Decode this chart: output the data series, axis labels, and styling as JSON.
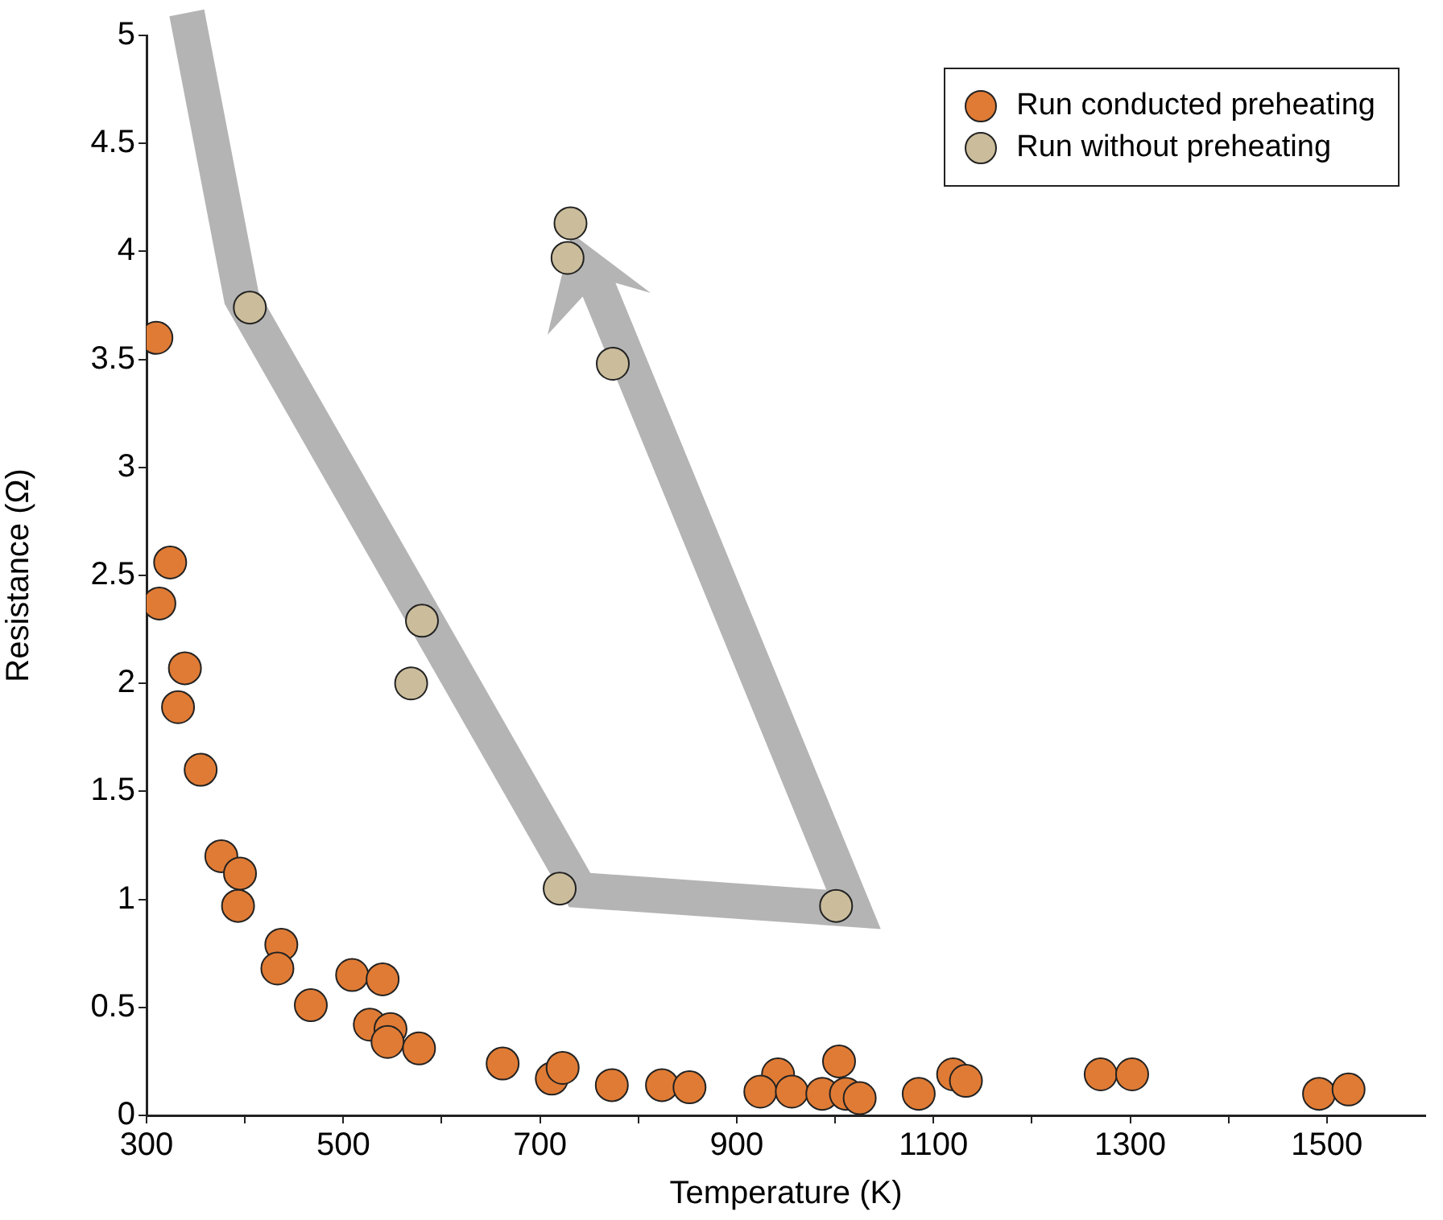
{
  "chart_data": {
    "type": "scatter",
    "xlabel": "Temperature (K)",
    "ylabel": "Resistance (Ω)",
    "xlim": [
      300,
      1600
    ],
    "xticks": [
      300,
      {
        "value": 400,
        "label": null
      },
      500,
      {
        "value": 600,
        "label": null
      },
      700,
      {
        "value": 800,
        "label": null
      },
      900,
      {
        "value": 1000,
        "label": null
      },
      1100,
      {
        "value": 1200,
        "label": null
      },
      1300,
      {
        "value": 1400,
        "label": null
      },
      1500
    ],
    "ylim": [
      0,
      5
    ],
    "yticks": [
      0,
      0.5,
      1,
      1.5,
      2,
      2.5,
      3,
      3.5,
      4,
      4.5,
      5
    ],
    "grid": false,
    "legend": "top right",
    "marker": "circle",
    "series": [
      {
        "name": "Run conducted preheating",
        "color": "#e07b35",
        "x": [
          310,
          313,
          324,
          339,
          332,
          355,
          376,
          395,
          393,
          437,
          433,
          467,
          509,
          540,
          527,
          548,
          545,
          577,
          662,
          712,
          723,
          773,
          824,
          852,
          942,
          924,
          956,
          987,
          1004,
          1011,
          1025,
          1085,
          1120,
          1133,
          1270,
          1302,
          1492,
          1522
        ],
        "values": [
          3.6,
          2.37,
          2.56,
          2.07,
          1.89,
          1.6,
          1.2,
          1.12,
          0.97,
          0.79,
          0.68,
          0.51,
          0.65,
          0.63,
          0.42,
          0.4,
          0.34,
          0.31,
          0.24,
          0.17,
          0.22,
          0.14,
          0.14,
          0.13,
          0.19,
          0.11,
          0.11,
          0.1,
          0.25,
          0.1,
          0.08,
          0.1,
          0.19,
          0.16,
          0.19,
          0.19,
          0.1,
          0.12
        ]
      },
      {
        "name": "Run without preheating",
        "color": "#cbbd9b",
        "x": [
          405,
          580,
          569,
          720,
          1001,
          774,
          728,
          731
        ],
        "values": [
          3.74,
          2.29,
          2.0,
          1.05,
          0.97,
          3.48,
          3.97,
          4.13
        ]
      }
    ]
  }
}
